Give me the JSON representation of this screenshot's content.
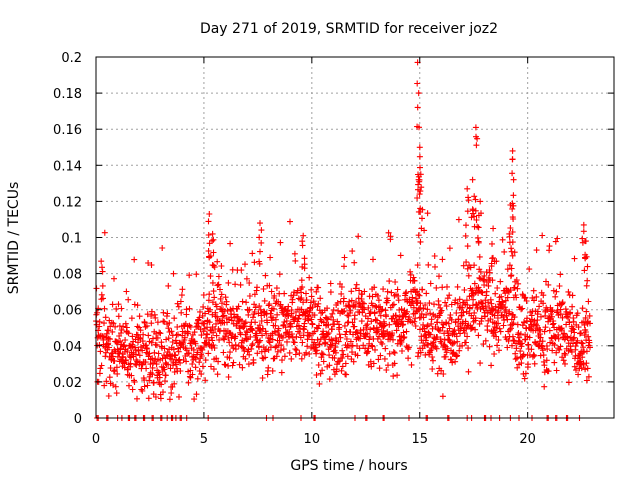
{
  "chart_data": {
    "type": "scatter",
    "title": "Day 271 of 2019, SRMTID for receiver joz2",
    "xlabel": "GPS time / hours",
    "ylabel": "SRMTID / TECUs",
    "xlim": [
      0,
      24
    ],
    "ylim": [
      0,
      0.2
    ],
    "x_ticks": [
      0,
      5,
      10,
      15,
      20
    ],
    "x_tick_labels": [
      "0",
      "5",
      "10",
      "15",
      "20"
    ],
    "y_ticks": [
      0,
      0.02,
      0.04,
      0.06,
      0.08,
      0.1,
      0.12,
      0.14,
      0.16,
      0.18,
      0.2
    ],
    "y_tick_labels": [
      "0",
      "0.02",
      "0.04",
      "0.06",
      "0.08",
      "0.1",
      "0.12",
      "0.14",
      "0.16",
      "0.18",
      "0.2"
    ],
    "grid": true,
    "marker": "+",
    "color": "#ff0000",
    "series": [
      {
        "name": "SRMTID",
        "trend": [
          [
            0.0,
            0.045
          ],
          [
            0.5,
            0.042
          ],
          [
            1.0,
            0.04
          ],
          [
            1.5,
            0.041
          ],
          [
            2.0,
            0.038
          ],
          [
            2.5,
            0.033
          ],
          [
            3.0,
            0.032
          ],
          [
            3.5,
            0.036
          ],
          [
            4.0,
            0.04
          ],
          [
            4.5,
            0.039
          ],
          [
            5.0,
            0.043
          ],
          [
            5.5,
            0.055
          ],
          [
            6.0,
            0.05
          ],
          [
            6.5,
            0.05
          ],
          [
            7.0,
            0.046
          ],
          [
            7.5,
            0.052
          ],
          [
            8.0,
            0.047
          ],
          [
            8.5,
            0.05
          ],
          [
            9.0,
            0.048
          ],
          [
            9.5,
            0.056
          ],
          [
            10.0,
            0.052
          ],
          [
            10.5,
            0.045
          ],
          [
            11.0,
            0.046
          ],
          [
            11.5,
            0.048
          ],
          [
            12.0,
            0.055
          ],
          [
            12.5,
            0.048
          ],
          [
            13.0,
            0.05
          ],
          [
            13.5,
            0.052
          ],
          [
            14.0,
            0.055
          ],
          [
            14.5,
            0.058
          ],
          [
            15.0,
            0.06
          ],
          [
            15.5,
            0.045
          ],
          [
            16.0,
            0.048
          ],
          [
            16.5,
            0.052
          ],
          [
            17.0,
            0.055
          ],
          [
            17.5,
            0.065
          ],
          [
            18.0,
            0.06
          ],
          [
            18.5,
            0.056
          ],
          [
            19.0,
            0.06
          ],
          [
            19.5,
            0.055
          ],
          [
            20.0,
            0.045
          ],
          [
            20.5,
            0.05
          ],
          [
            21.0,
            0.048
          ],
          [
            21.5,
            0.052
          ],
          [
            22.0,
            0.046
          ],
          [
            22.5,
            0.042
          ],
          [
            22.9,
            0.045
          ]
        ],
        "spread": 0.012,
        "points_per_hour": 90,
        "peaks": [
          [
            5.25,
            0.113
          ],
          [
            5.4,
            0.102
          ],
          [
            7.6,
            0.108
          ],
          [
            9.6,
            0.101
          ],
          [
            14.9,
            0.197
          ],
          [
            14.95,
            0.18
          ],
          [
            15.0,
            0.15
          ],
          [
            15.05,
            0.135
          ],
          [
            17.2,
            0.127
          ],
          [
            17.45,
            0.132
          ],
          [
            17.6,
            0.161
          ],
          [
            17.8,
            0.12
          ],
          [
            18.4,
            0.105
          ],
          [
            19.3,
            0.148
          ],
          [
            19.35,
            0.132
          ],
          [
            19.2,
            0.118
          ],
          [
            22.6,
            0.107
          ],
          [
            22.7,
            0.098
          ]
        ],
        "zeros": [
          0.05,
          0.5,
          1.0,
          1.2,
          1.5,
          1.8,
          2.2,
          2.6,
          3.0,
          3.3,
          3.5,
          3.7,
          3.9,
          4.2,
          5.2,
          7.9,
          8.2,
          9.5,
          10.1,
          12.0,
          12.5,
          13.3,
          14.5,
          15.3,
          16.3,
          17.2,
          17.4,
          18.0,
          18.3,
          18.7,
          19.2,
          19.6,
          20.2,
          20.9,
          21.3,
          21.8,
          22.4
        ]
      }
    ]
  }
}
